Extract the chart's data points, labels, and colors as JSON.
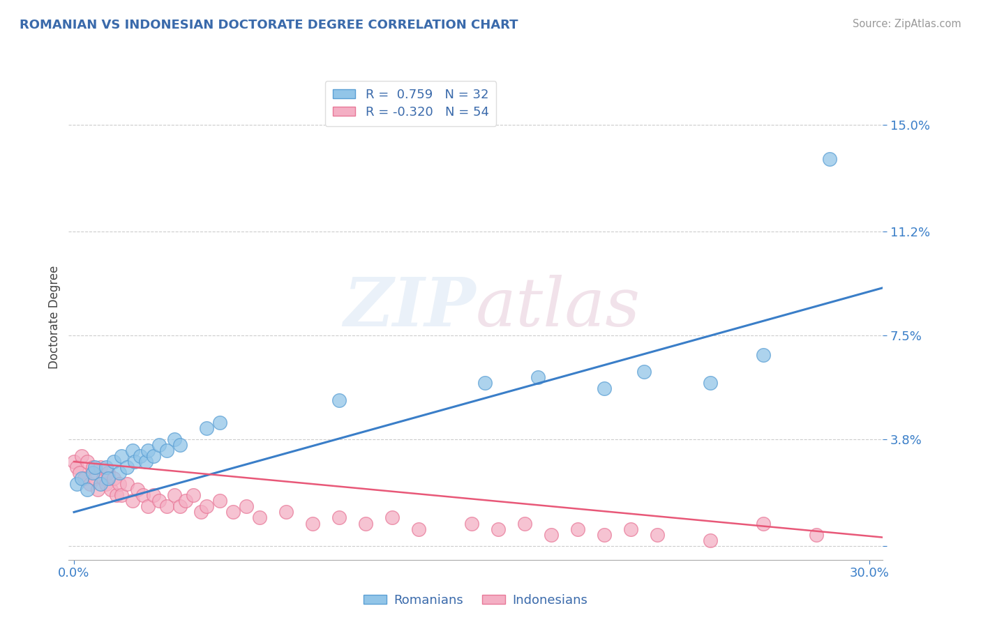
{
  "title": "ROMANIAN VS INDONESIAN DOCTORATE DEGREE CORRELATION CHART",
  "source": "Source: ZipAtlas.com",
  "ylabel_label": "Doctorate Degree",
  "yticks": [
    0.0,
    0.038,
    0.075,
    0.112,
    0.15
  ],
  "ytick_labels": [
    "",
    "3.8%",
    "7.5%",
    "11.2%",
    "15.0%"
  ],
  "xlim": [
    -0.002,
    0.305
  ],
  "ylim": [
    -0.005,
    0.168
  ],
  "watermark": "ZIPatlas",
  "blue_color": "#92c5e8",
  "pink_color": "#f4afc4",
  "blue_edge": "#5a9fd4",
  "pink_edge": "#e87898",
  "line_blue": "#3a7ec8",
  "line_pink": "#e85878",
  "title_color": "#3a6aab",
  "tick_color": "#3a7ec8",
  "source_color": "#999999",
  "romanians_scatter": [
    [
      0.001,
      0.022
    ],
    [
      0.003,
      0.024
    ],
    [
      0.005,
      0.02
    ],
    [
      0.007,
      0.026
    ],
    [
      0.008,
      0.028
    ],
    [
      0.01,
      0.022
    ],
    [
      0.012,
      0.028
    ],
    [
      0.013,
      0.024
    ],
    [
      0.015,
      0.03
    ],
    [
      0.017,
      0.026
    ],
    [
      0.018,
      0.032
    ],
    [
      0.02,
      0.028
    ],
    [
      0.022,
      0.034
    ],
    [
      0.023,
      0.03
    ],
    [
      0.025,
      0.032
    ],
    [
      0.027,
      0.03
    ],
    [
      0.028,
      0.034
    ],
    [
      0.03,
      0.032
    ],
    [
      0.032,
      0.036
    ],
    [
      0.035,
      0.034
    ],
    [
      0.038,
      0.038
    ],
    [
      0.04,
      0.036
    ],
    [
      0.05,
      0.042
    ],
    [
      0.055,
      0.044
    ],
    [
      0.1,
      0.052
    ],
    [
      0.155,
      0.058
    ],
    [
      0.175,
      0.06
    ],
    [
      0.2,
      0.056
    ],
    [
      0.215,
      0.062
    ],
    [
      0.24,
      0.058
    ],
    [
      0.26,
      0.068
    ],
    [
      0.285,
      0.138
    ]
  ],
  "indonesians_scatter": [
    [
      0.0,
      0.03
    ],
    [
      0.001,
      0.028
    ],
    [
      0.002,
      0.026
    ],
    [
      0.003,
      0.032
    ],
    [
      0.004,
      0.024
    ],
    [
      0.005,
      0.03
    ],
    [
      0.006,
      0.022
    ],
    [
      0.007,
      0.028
    ],
    [
      0.008,
      0.024
    ],
    [
      0.009,
      0.02
    ],
    [
      0.01,
      0.028
    ],
    [
      0.011,
      0.024
    ],
    [
      0.012,
      0.022
    ],
    [
      0.013,
      0.026
    ],
    [
      0.014,
      0.02
    ],
    [
      0.015,
      0.024
    ],
    [
      0.016,
      0.018
    ],
    [
      0.017,
      0.022
    ],
    [
      0.018,
      0.018
    ],
    [
      0.02,
      0.022
    ],
    [
      0.022,
      0.016
    ],
    [
      0.024,
      0.02
    ],
    [
      0.026,
      0.018
    ],
    [
      0.028,
      0.014
    ],
    [
      0.03,
      0.018
    ],
    [
      0.032,
      0.016
    ],
    [
      0.035,
      0.014
    ],
    [
      0.038,
      0.018
    ],
    [
      0.04,
      0.014
    ],
    [
      0.042,
      0.016
    ],
    [
      0.045,
      0.018
    ],
    [
      0.048,
      0.012
    ],
    [
      0.05,
      0.014
    ],
    [
      0.055,
      0.016
    ],
    [
      0.06,
      0.012
    ],
    [
      0.065,
      0.014
    ],
    [
      0.07,
      0.01
    ],
    [
      0.08,
      0.012
    ],
    [
      0.09,
      0.008
    ],
    [
      0.1,
      0.01
    ],
    [
      0.11,
      0.008
    ],
    [
      0.12,
      0.01
    ],
    [
      0.13,
      0.006
    ],
    [
      0.15,
      0.008
    ],
    [
      0.16,
      0.006
    ],
    [
      0.17,
      0.008
    ],
    [
      0.18,
      0.004
    ],
    [
      0.19,
      0.006
    ],
    [
      0.2,
      0.004
    ],
    [
      0.21,
      0.006
    ],
    [
      0.22,
      0.004
    ],
    [
      0.24,
      0.002
    ],
    [
      0.26,
      0.008
    ],
    [
      0.28,
      0.004
    ]
  ],
  "blue_trend_x": [
    0.0,
    0.305
  ],
  "blue_trend_y": [
    0.012,
    0.092
  ],
  "pink_trend_x": [
    0.0,
    0.305
  ],
  "pink_trend_y": [
    0.03,
    0.003
  ]
}
